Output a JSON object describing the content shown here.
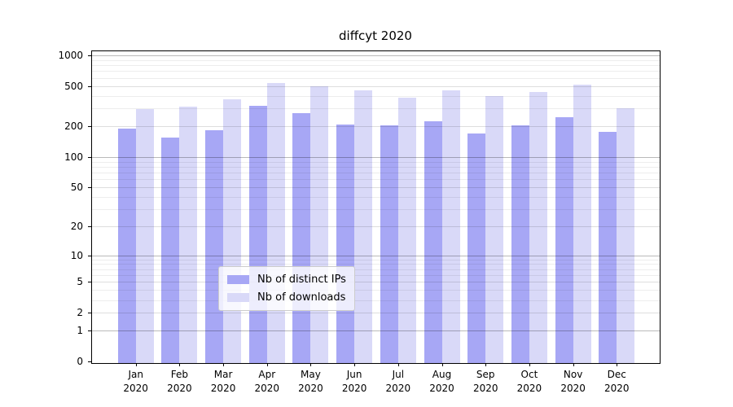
{
  "chart_data": {
    "type": "bar",
    "title": "diffcyt 2020",
    "categories": [
      "Jan 2020",
      "Feb 2020",
      "Mar 2020",
      "Apr 2020",
      "May 2020",
      "Jun 2020",
      "Jul 2020",
      "Aug 2020",
      "Sep 2020",
      "Oct 2020",
      "Nov 2020",
      "Dec 2020"
    ],
    "series": [
      {
        "name": "Nb of distinct IPs",
        "color": "#a7a7f5",
        "values": [
          190,
          155,
          183,
          319,
          270,
          211,
          207,
          226,
          172,
          207,
          245,
          176
        ]
      },
      {
        "name": "Nb of downloads",
        "color": "#d9d9f8",
        "values": [
          299,
          312,
          367,
          540,
          499,
          454,
          385,
          454,
          402,
          436,
          516,
          302
        ]
      }
    ],
    "yscale": "log10(1+y)",
    "ylim": [
      0,
      1000
    ],
    "yticks": [
      0,
      1,
      2,
      5,
      10,
      20,
      50,
      100,
      200,
      500,
      1000
    ],
    "minor_yticks": [
      3,
      4,
      6,
      7,
      8,
      9,
      30,
      40,
      60,
      70,
      80,
      90,
      300,
      400,
      600,
      700,
      800,
      900
    ],
    "decade_ticks": [
      1,
      10,
      100,
      1000
    ],
    "grid": true,
    "legend_position": "lower-center",
    "xlabel": "",
    "ylabel": ""
  }
}
